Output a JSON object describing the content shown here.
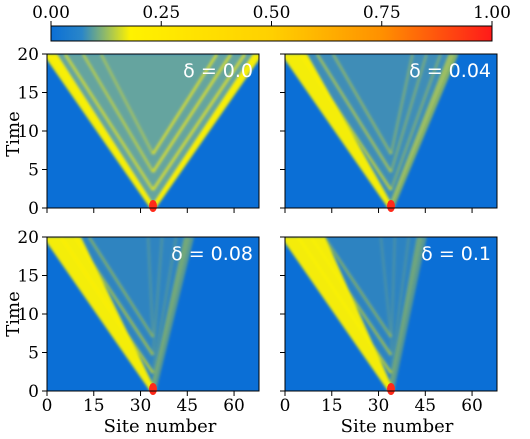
{
  "chart_data": {
    "type": "heatmap",
    "colorbar": {
      "ticks": [
        "0.00",
        "0.25",
        "0.50",
        "0.75",
        "1.00"
      ],
      "range": [
        0,
        1
      ],
      "colors": [
        "#0b6fd6",
        "#ffff00",
        "#ff0000"
      ]
    },
    "background_color": "#0b6fd6",
    "xlabel": "Site number",
    "ylabel": "Time",
    "xlim": [
      0,
      68
    ],
    "ylim": [
      0,
      20
    ],
    "xticks": [
      "0",
      "15",
      "30",
      "45",
      "60"
    ],
    "yticks": [
      "0",
      "5",
      "10",
      "15",
      "20"
    ],
    "source_site": 34,
    "panels": [
      {
        "label": "δ = 0.0",
        "disorder": 0.0,
        "left_front_speed": 1.0,
        "right_front_speed": 1.0,
        "right_fade": 1.0
      },
      {
        "label": "δ = 0.04",
        "disorder": 0.04,
        "left_front_speed": 1.0,
        "right_front_speed": 0.6,
        "right_fade": 0.35
      },
      {
        "label": "δ = 0.08",
        "disorder": 0.08,
        "left_front_speed": 1.0,
        "right_front_speed": 0.35,
        "right_fade": 0.12
      },
      {
        "label": "δ = 0.1",
        "disorder": 0.1,
        "left_front_speed": 1.0,
        "right_front_speed": 0.3,
        "right_fade": 0.08
      }
    ]
  }
}
